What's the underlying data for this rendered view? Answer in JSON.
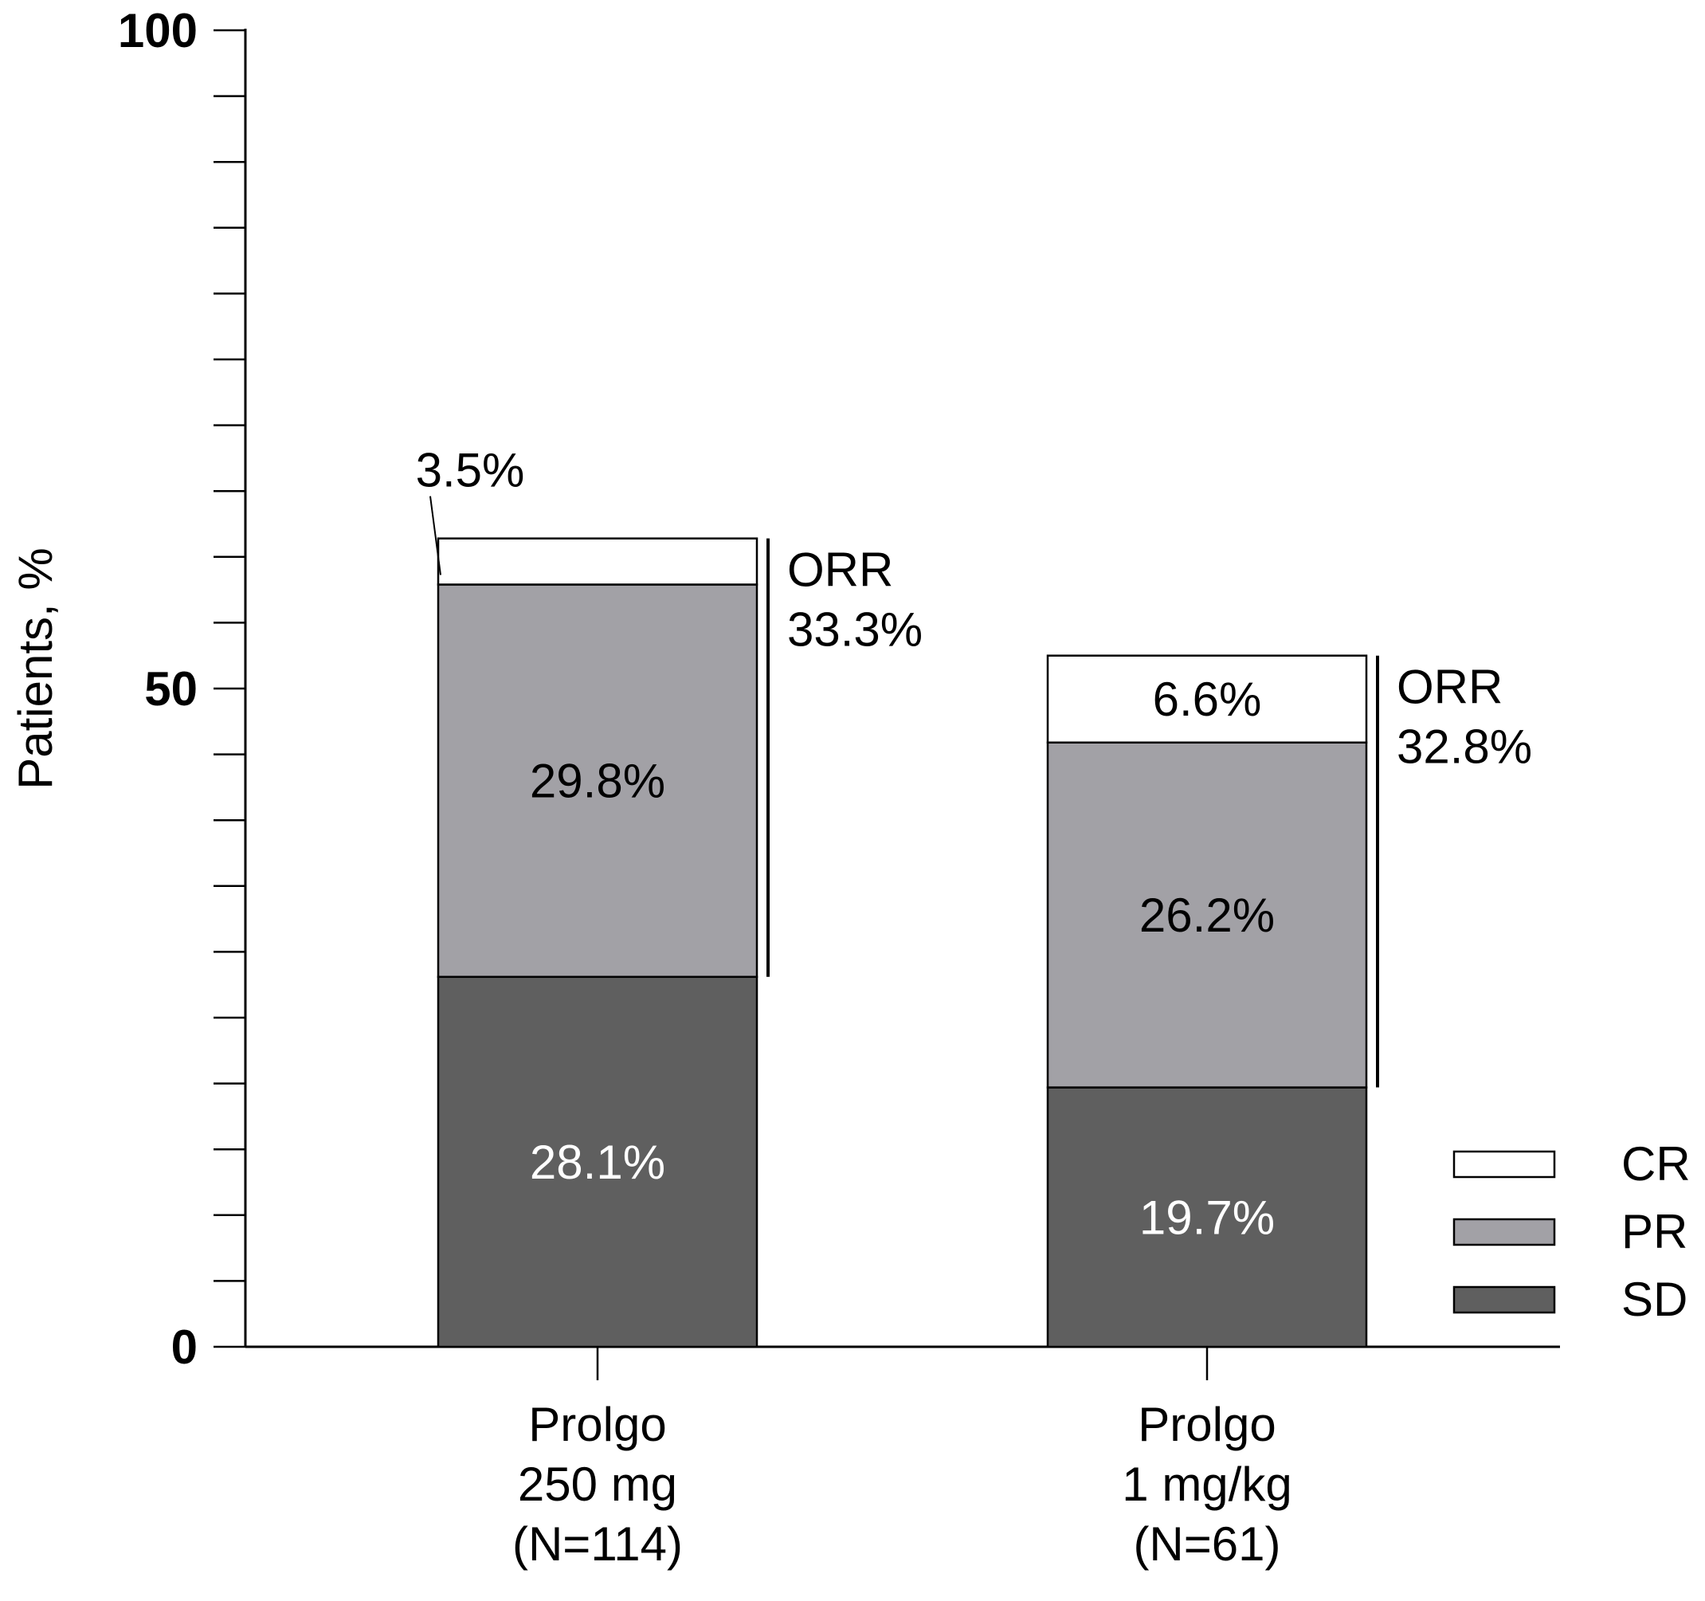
{
  "chart_data": {
    "type": "bar",
    "stacked": true,
    "ylabel": "Patients, %",
    "ylim": [
      0,
      100
    ],
    "y_ticks_labeled": [
      "0",
      "50",
      "100"
    ],
    "y_minor_tick_step": 5,
    "grid": false,
    "legend_position": "bottom-right",
    "categories": [
      [
        "Prolgo",
        "250 mg",
        "(N=114)"
      ],
      [
        "Prolgo",
        "1 mg/kg",
        "(N=61)"
      ]
    ],
    "series": [
      {
        "name": "SD",
        "color": "#5f5f5f",
        "text_color": "#ffffff",
        "values": [
          28.1,
          19.7
        ],
        "labels": [
          "28.1%",
          "19.7%"
        ]
      },
      {
        "name": "PR",
        "color": "#a2a1a6",
        "text_color": "#000000",
        "values": [
          29.8,
          26.2
        ],
        "labels": [
          "29.8%",
          "26.2%"
        ]
      },
      {
        "name": "CR",
        "color": "#ffffff",
        "text_color": "#000000",
        "values": [
          3.5,
          6.6
        ],
        "labels": [
          "3.5%",
          "6.6%"
        ]
      }
    ],
    "annotations": [
      {
        "category_index": 0,
        "lines": [
          "ORR",
          "33.3%"
        ],
        "value": 33.3
      },
      {
        "category_index": 1,
        "lines": [
          "ORR",
          "32.8%"
        ],
        "value": 32.8
      }
    ]
  }
}
